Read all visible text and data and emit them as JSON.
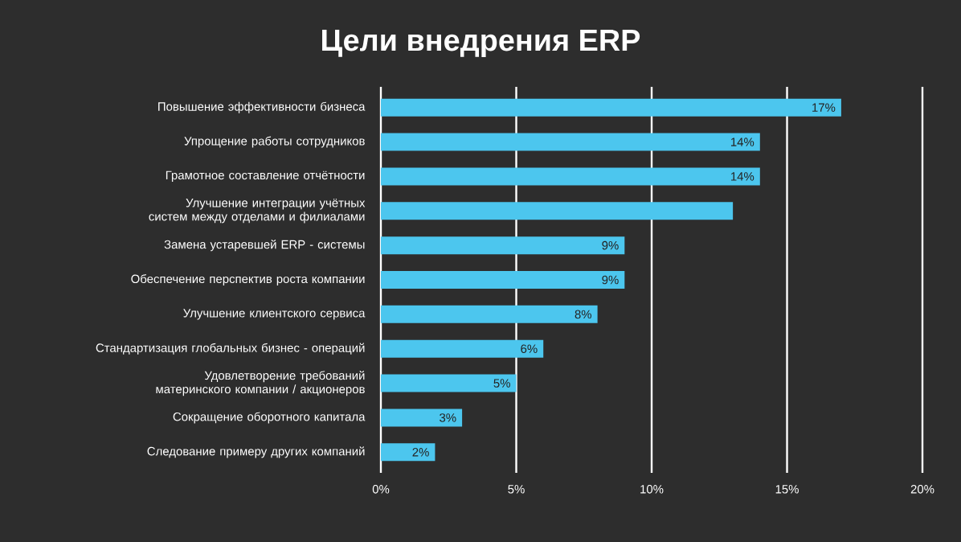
{
  "chart_data": {
    "type": "bar",
    "orientation": "horizontal",
    "title": "Цели внедрения ERP",
    "categories": [
      "Повышение эффективности бизнеса",
      "Упрощение работы сотрудников",
      "Грамотное составление отчётности",
      "Улучшение интеграции учётных систем между отделами и филиалами",
      "Замена устаревшей ERP - системы",
      "Обеспечение перспектив роста компании",
      "Улучшение клиентского сервиса",
      "Стандартизация глобальных бизнес - операций",
      "Удовлетворение требований материнского компании / акционеров",
      "Сокращение оборотного капитала",
      "Следование примеру других компаний"
    ],
    "values": [
      17,
      14,
      14,
      13,
      9,
      9,
      8,
      6,
      5,
      3,
      2
    ],
    "value_labels": [
      "17%",
      "14%",
      "14%",
      null,
      "9%",
      "9%",
      "8%",
      "6%",
      "5%",
      "3%",
      "2%"
    ],
    "color": "#4cc6ee",
    "xlim": [
      0,
      20
    ],
    "xticks": [
      {
        "value": 0,
        "label": "0%"
      },
      {
        "value": 5,
        "label": "5%"
      },
      {
        "value": 10,
        "label": "10%"
      },
      {
        "value": 15,
        "label": "15%"
      },
      {
        "value": 20,
        "label": "20%"
      }
    ],
    "grid": "x"
  }
}
